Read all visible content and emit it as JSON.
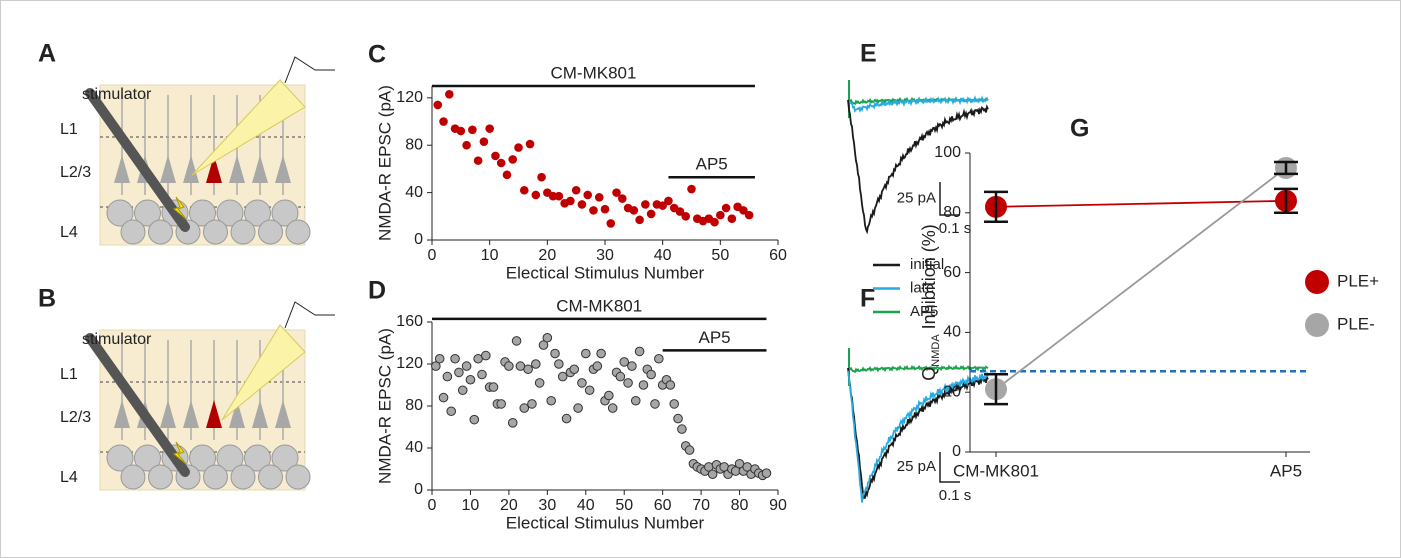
{
  "diagrams": [
    {
      "panel": "A",
      "stimulator": "stimulator",
      "layers": [
        "L1",
        "L2/3",
        "L4"
      ]
    },
    {
      "panel": "B",
      "stimulator": "stimulator",
      "layers": [
        "L1",
        "L2/3",
        "L4"
      ]
    }
  ],
  "chart_data": [
    {
      "panel": "C",
      "type": "scatter",
      "xlabel": "Electical Stimulus Number",
      "ylabel": "NMDA-R EPSC (pA)",
      "color": "#c00000",
      "x": [
        1,
        2,
        3,
        4,
        5,
        6,
        7,
        8,
        9,
        10,
        11,
        12,
        13,
        14,
        15,
        16,
        17,
        18,
        19,
        20,
        21,
        22,
        23,
        24,
        25,
        26,
        27,
        28,
        29,
        30,
        31,
        32,
        33,
        34,
        35,
        36,
        37,
        38,
        39,
        40,
        41,
        42,
        43,
        44,
        45,
        46,
        47,
        48,
        49,
        50,
        51,
        52,
        53,
        54,
        55
      ],
      "values": [
        114,
        100,
        123,
        94,
        92,
        80,
        93,
        67,
        83,
        94,
        71,
        65,
        55,
        68,
        78,
        42,
        81,
        38,
        53,
        40,
        37,
        37,
        31,
        33,
        42,
        30,
        38,
        25,
        36,
        26,
        14,
        40,
        35,
        27,
        25,
        17,
        30,
        22,
        30,
        29,
        33,
        27,
        24,
        20,
        43,
        18,
        16,
        18,
        15,
        21,
        27,
        18,
        28,
        25,
        21
      ],
      "xlim": [
        0,
        60
      ],
      "ylim": [
        0,
        130
      ],
      "xticks": [
        0,
        10,
        20,
        30,
        40,
        50,
        60
      ],
      "yticks": [
        0,
        40,
        80,
        120
      ],
      "annotations": [
        {
          "text": "CM-MK801",
          "x_range": [
            0,
            56
          ],
          "y": 130
        },
        {
          "text": "AP5",
          "x_range": [
            41,
            56
          ],
          "y": 53
        }
      ]
    },
    {
      "panel": "D",
      "type": "scatter",
      "xlabel": "Electical Stimulus Number",
      "ylabel": "NMDA-R EPSC (pA)",
      "color": "#a6a6a6",
      "x": [
        1,
        2,
        3,
        4,
        5,
        6,
        7,
        8,
        9,
        10,
        11,
        12,
        13,
        14,
        15,
        16,
        17,
        18,
        19,
        20,
        21,
        22,
        23,
        24,
        25,
        26,
        27,
        28,
        29,
        30,
        31,
        32,
        33,
        34,
        35,
        36,
        37,
        38,
        39,
        40,
        41,
        42,
        43,
        44,
        45,
        46,
        47,
        48,
        49,
        50,
        51,
        52,
        53,
        54,
        55,
        56,
        57,
        58,
        59,
        60,
        61,
        62,
        63,
        64,
        65,
        66,
        67,
        68,
        69,
        70,
        71,
        72,
        73,
        74,
        75,
        76,
        77,
        78,
        79,
        80,
        81,
        82,
        83,
        84,
        85,
        86,
        87
      ],
      "values": [
        118,
        125,
        88,
        108,
        75,
        125,
        112,
        95,
        118,
        105,
        67,
        125,
        110,
        128,
        98,
        98,
        82,
        82,
        122,
        118,
        64,
        142,
        118,
        78,
        115,
        82,
        120,
        102,
        138,
        145,
        85,
        130,
        120,
        108,
        68,
        112,
        115,
        78,
        102,
        130,
        95,
        115,
        118,
        130,
        85,
        90,
        78,
        112,
        108,
        122,
        102,
        118,
        85,
        132,
        100,
        115,
        110,
        82,
        125,
        100,
        105,
        100,
        82,
        68,
        58,
        42,
        38,
        25,
        22,
        20,
        18,
        22,
        15,
        24,
        20,
        22,
        15,
        20,
        18,
        25,
        18,
        22,
        15,
        20,
        16,
        14,
        16
      ],
      "xlim": [
        0,
        90
      ],
      "ylim": [
        0,
        160
      ],
      "xticks": [
        0,
        10,
        20,
        30,
        40,
        50,
        60,
        70,
        80,
        90
      ],
      "yticks": [
        0,
        40,
        80,
        120,
        160
      ],
      "annotations": [
        {
          "text": "CM-MK801",
          "x_range": [
            0,
            87
          ],
          "y": 163
        },
        {
          "text": "AP5",
          "x_range": [
            60,
            87
          ],
          "y": 133
        }
      ]
    },
    {
      "panels": [
        "E",
        "F"
      ],
      "type": "trace",
      "series": [
        {
          "name": "initial",
          "color": "#1a1a1a"
        },
        {
          "name": "late",
          "color": "#29abe2"
        },
        {
          "name": "AP5",
          "color": "#1aa34a"
        }
      ],
      "scale_bar": {
        "y_label": "25 pA",
        "x_label": "0.1 s"
      }
    },
    {
      "panel": "G",
      "type": "errorbar",
      "categories": [
        "CM-MK801",
        "AP5"
      ],
      "ylabel": {
        "main": "Q",
        "sub": "NMDA",
        "rest": " Inhibition (%)"
      },
      "series": [
        {
          "name": "PLE+",
          "color": "#c00000",
          "values": [
            82,
            84
          ],
          "errors": [
            5,
            4
          ]
        },
        {
          "name": "PLE-",
          "color": "#a6a6a6",
          "values": [
            21,
            95
          ],
          "errors": [
            5,
            2
          ]
        }
      ],
      "ylim": [
        0,
        100
      ],
      "yticks": [
        0,
        20,
        40,
        60,
        80,
        100
      ],
      "reference_line": {
        "y": 27,
        "color": "#1f6fbf"
      },
      "legend": "right"
    }
  ]
}
